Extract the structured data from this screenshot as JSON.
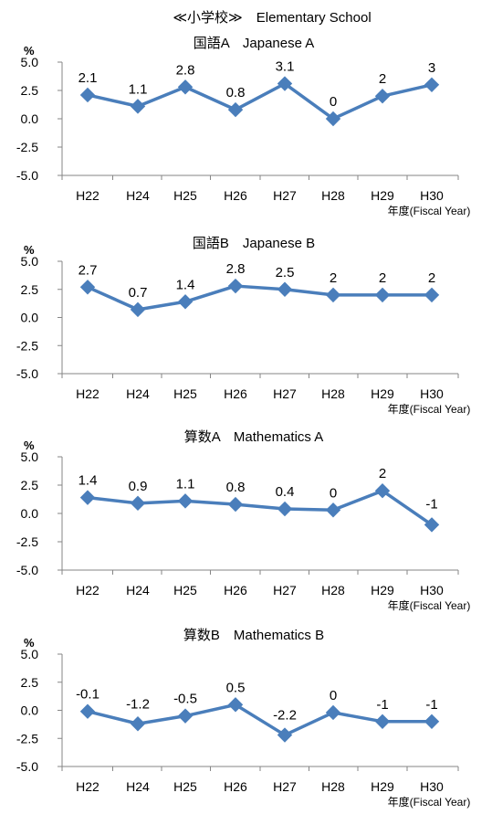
{
  "main_title": "≪小学校≫　Elementary School",
  "chart_data": [
    {
      "type": "line",
      "title": "国語A　Japanese A",
      "ylabel": "%",
      "xlabel": "年度(Fiscal Year)",
      "categories": [
        "H22",
        "H24",
        "H25",
        "H26",
        "H27",
        "H28",
        "H29",
        "H30"
      ],
      "values": [
        2.1,
        1.1,
        2.8,
        0.8,
        3.1,
        0,
        2,
        3
      ],
      "labels": [
        "2.1",
        "1.1",
        "2.8",
        "0.8",
        "3.1",
        "0",
        "2",
        "3"
      ],
      "yticks": [
        "5.0",
        "2.5",
        "0.0",
        "-2.5",
        "-5.0"
      ],
      "ylim": [
        -5,
        5
      ],
      "color": "#4a7ebb"
    },
    {
      "type": "line",
      "title": "国語B　Japanese B",
      "ylabel": "%",
      "xlabel": "年度(Fiscal Year)",
      "categories": [
        "H22",
        "H24",
        "H25",
        "H26",
        "H27",
        "H28",
        "H29",
        "H30"
      ],
      "values": [
        2.7,
        0.7,
        1.4,
        2.8,
        2.5,
        2,
        2,
        2
      ],
      "labels": [
        "2.7",
        "0.7",
        "1.4",
        "2.8",
        "2.5",
        "2",
        "2",
        "2"
      ],
      "yticks": [
        "5.0",
        "2.5",
        "0.0",
        "-2.5",
        "-5.0"
      ],
      "ylim": [
        -5,
        5
      ],
      "color": "#4a7ebb"
    },
    {
      "type": "line",
      "title": "算数A　Mathematics A",
      "ylabel": "%",
      "xlabel": "年度(Fiscal Year)",
      "categories": [
        "H22",
        "H24",
        "H25",
        "H26",
        "H27",
        "H28",
        "H29",
        "H30"
      ],
      "values": [
        1.4,
        0.9,
        1.1,
        0.8,
        0.4,
        0.3,
        2,
        -1
      ],
      "labels": [
        "1.4",
        "0.9",
        "1.1",
        "0.8",
        "0.4",
        "0",
        "2",
        "-1"
      ],
      "yticks": [
        "5.0",
        "2.5",
        "0.0",
        "-2.5",
        "-5.0"
      ],
      "ylim": [
        -5,
        5
      ],
      "color": "#4a7ebb"
    },
    {
      "type": "line",
      "title": "算数B　Mathematics B",
      "ylabel": "%",
      "xlabel": "年度(Fiscal Year)",
      "categories": [
        "H22",
        "H24",
        "H25",
        "H26",
        "H27",
        "H28",
        "H29",
        "H30"
      ],
      "values": [
        -0.1,
        -1.2,
        -0.5,
        0.5,
        -2.2,
        -0.2,
        -1,
        -1
      ],
      "labels": [
        "-0.1",
        "-1.2",
        "-0.5",
        "0.5",
        "-2.2",
        "0",
        "-1",
        "-1"
      ],
      "yticks": [
        "5.0",
        "2.5",
        "0.0",
        "-2.5",
        "-5.0"
      ],
      "ylim": [
        -5,
        5
      ],
      "color": "#4a7ebb"
    }
  ]
}
